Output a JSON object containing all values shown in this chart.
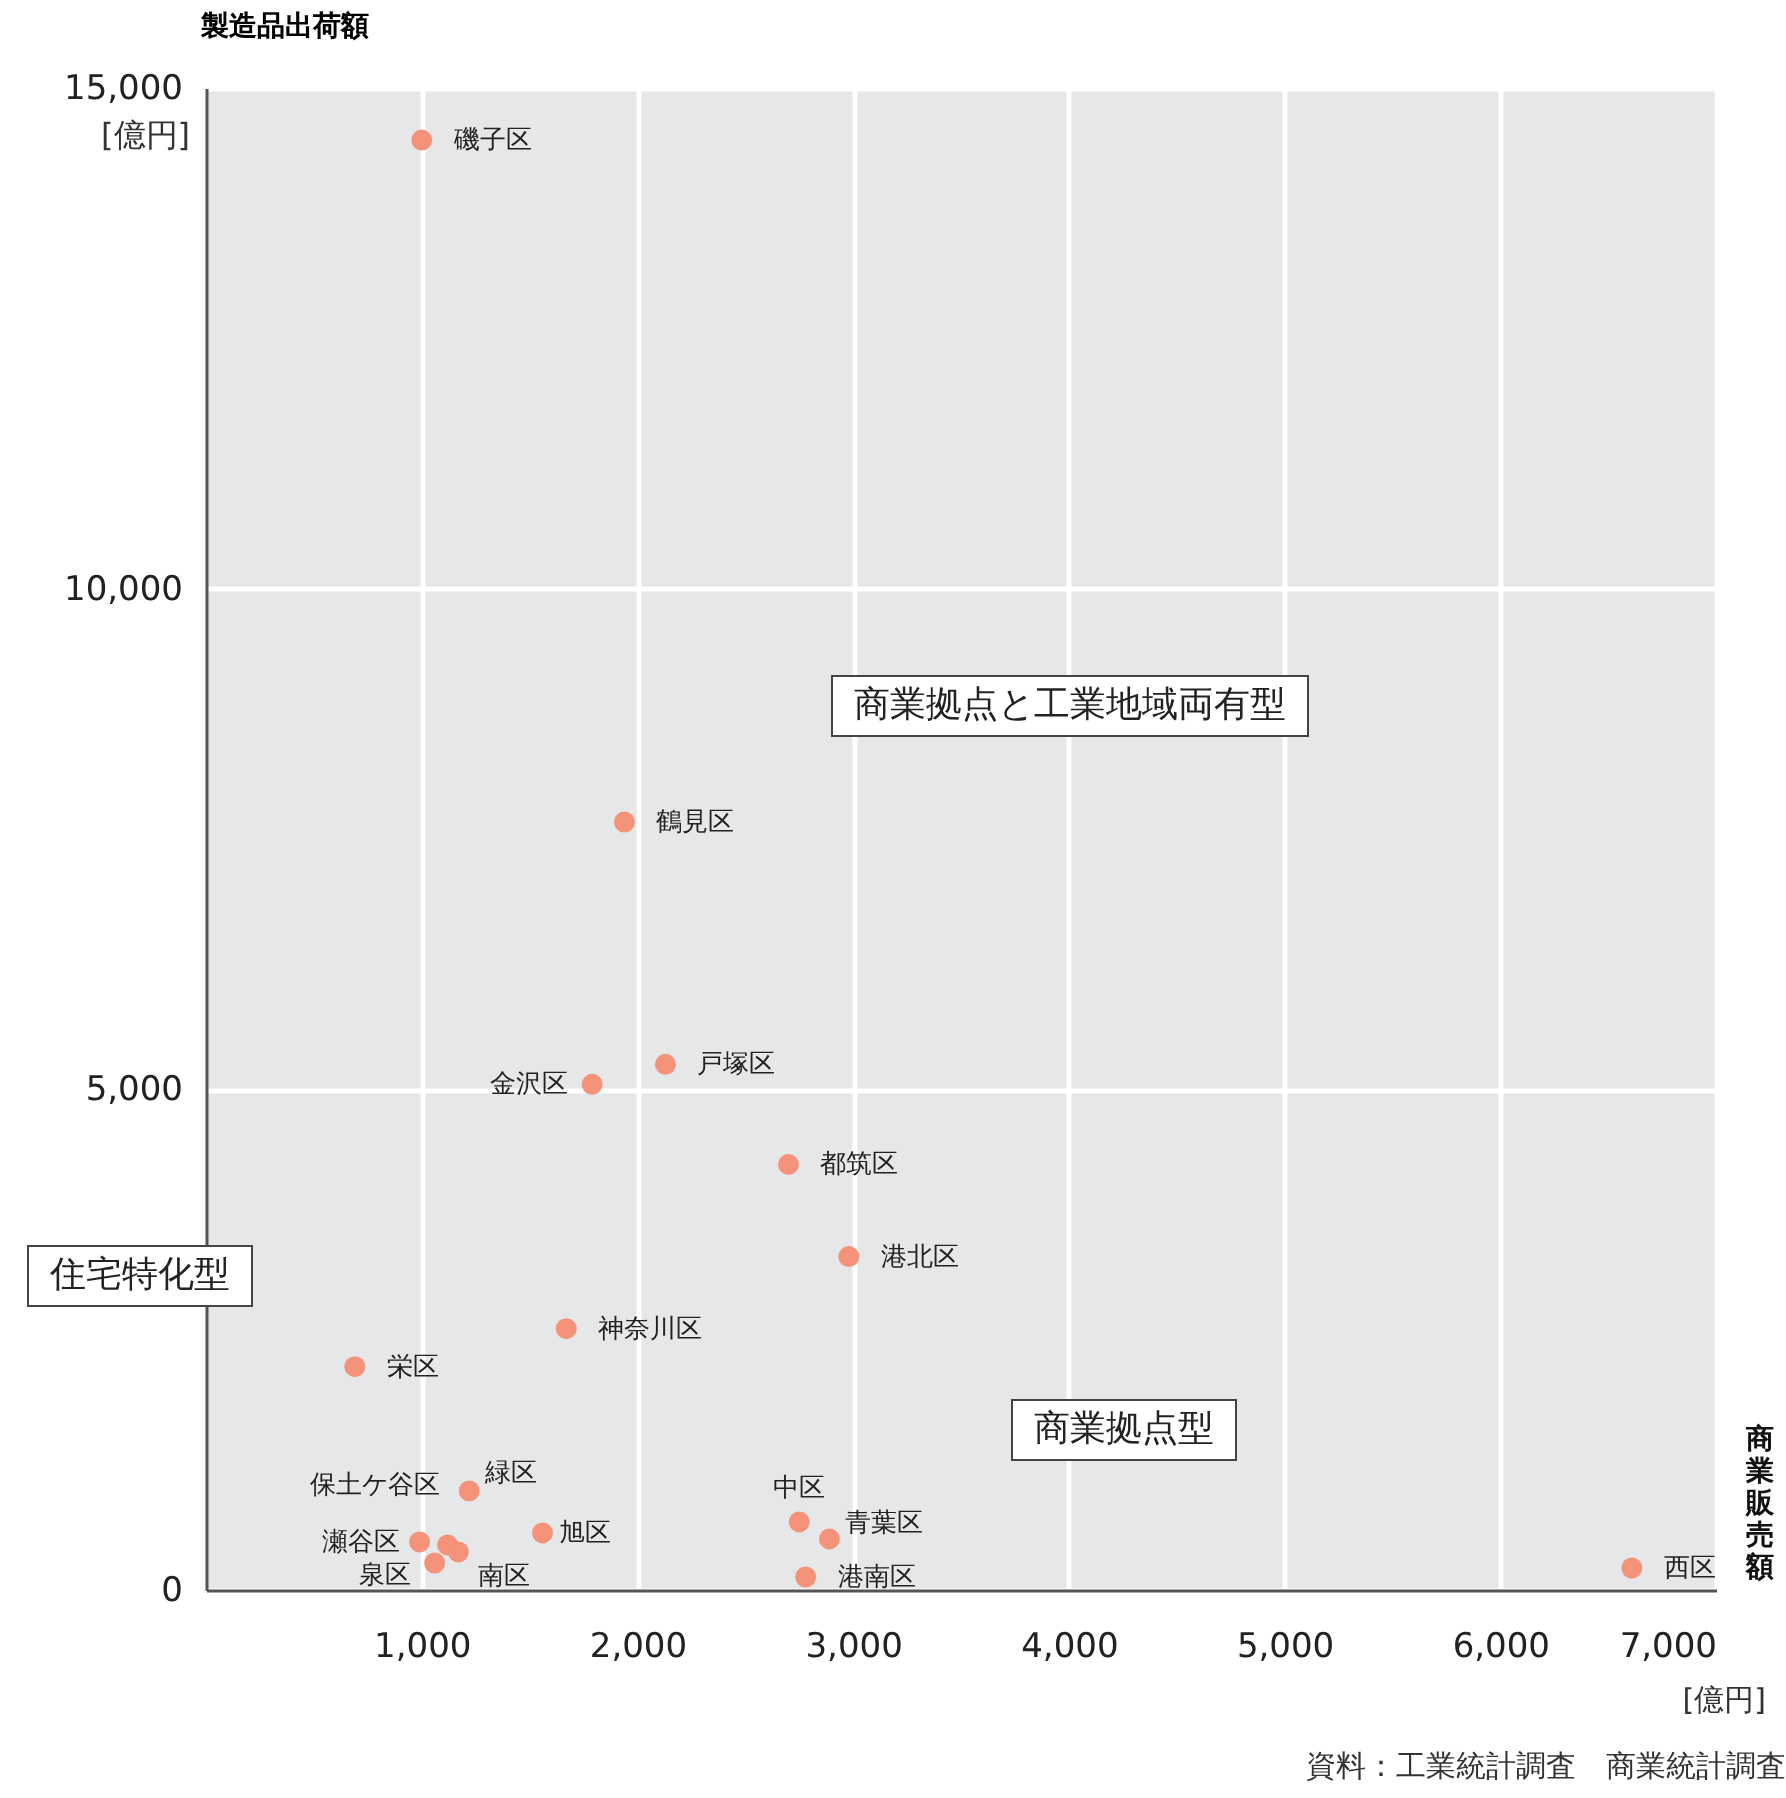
{
  "chart_data": {
    "type": "scatter",
    "xlabel": "商業販売額",
    "ylabel": "製造品出荷額",
    "xlim": [
      0,
      7000
    ],
    "ylim": [
      0,
      15000
    ],
    "xticks": [
      {
        "value": 1000,
        "label": "1,000"
      },
      {
        "value": 2000,
        "label": "2,000"
      },
      {
        "value": 3000,
        "label": "3,000"
      },
      {
        "value": 4000,
        "label": "4,000"
      },
      {
        "value": 5000,
        "label": "5,000"
      },
      {
        "value": 6000,
        "label": "6,000"
      },
      {
        "value": 7000,
        "label": "7,000"
      }
    ],
    "yticks": [
      0,
      {
        "value": 5000,
        "label": "5,000"
      },
      {
        "value": 10000,
        "label": "10,000"
      },
      {
        "value": 15000,
        "label": "15,000"
      }
    ],
    "grid": true,
    "marker": "circle",
    "series": [
      {
        "color": "#f4937a",
        "x": [
          1000,
          1940,
          2130,
          1790,
          2700,
          2980,
          1670,
          690,
          1220,
          990,
          1120,
          1170,
          1060,
          1560,
          2750,
          2890,
          2780,
          6610
        ],
        "values": [
          14480,
          7670,
          5250,
          5050,
          4250,
          3330,
          2610,
          2230,
          990,
          480,
          450,
          380,
          270,
          570,
          680,
          510,
          130,
          220
        ]
      }
    ],
    "annotations": [
      "[億円]",
      "[億円]",
      "資料：工業統計調査　商業統計調査",
      "商業拠点と工業地域両有型",
      "住宅特化型",
      "商業拠点型",
      {
        "text": "磯子区",
        "x": 1000,
        "y": 14480
      },
      {
        "text": "鶴見区",
        "x": 1940,
        "y": 7670
      },
      {
        "text": "戸塚区",
        "x": 2130,
        "y": 5250
      },
      {
        "text": "金沢区",
        "x": 1790,
        "y": 5050
      },
      {
        "text": "都筑区",
        "x": 2700,
        "y": 4250
      },
      {
        "text": "港北区",
        "x": 2980,
        "y": 3330
      },
      {
        "text": "神奈川区",
        "x": 1670,
        "y": 2610
      },
      {
        "text": "栄区",
        "x": 690,
        "y": 2230
      },
      {
        "text": "緑区",
        "x": 1220,
        "y": 990
      },
      {
        "text": "瀬谷区",
        "x": 990,
        "y": 480
      },
      {
        "text": "保土ケ谷区",
        "x": 1120,
        "y": 450
      },
      {
        "text": "南区",
        "x": 1170,
        "y": 380
      },
      {
        "text": "泉区",
        "x": 1060,
        "y": 270
      },
      {
        "text": "旭区",
        "x": 1560,
        "y": 570
      },
      {
        "text": "中区",
        "x": 2750,
        "y": 680
      },
      {
        "text": "青葉区",
        "x": 2890,
        "y": 510
      },
      {
        "text": "港南区",
        "x": 2780,
        "y": 130
      },
      {
        "text": "西区",
        "x": 6610,
        "y": 220
      }
    ]
  }
}
